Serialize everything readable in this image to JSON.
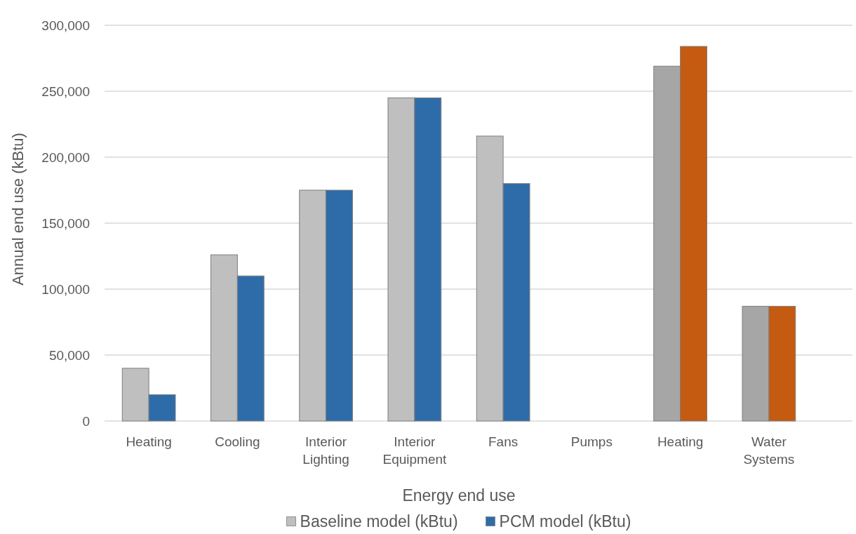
{
  "chart_data": {
    "type": "bar",
    "xlabel": "Energy end use",
    "ylabel": "Annual end use (kBtu)",
    "categories": [
      "Heating",
      "Cooling",
      "Interior Lighting",
      "Interior Equipment",
      "Fans",
      "Pumps",
      "Heating",
      "Water Systems"
    ],
    "series": [
      {
        "name": "Baseline model (kBtu)",
        "color": "#bfbfbf",
        "colors": [
          "#bfbfbf",
          "#bfbfbf",
          "#bfbfbf",
          "#bfbfbf",
          "#bfbfbf",
          "#bfbfbf",
          "#a6a6a6",
          "#a6a6a6"
        ],
        "values": [
          40000,
          126000,
          175000,
          245000,
          216000,
          0,
          269000,
          87000
        ]
      },
      {
        "name": "PCM model (kBtu)",
        "color": "#2e6ca9",
        "colors": [
          "#2e6ca9",
          "#2e6ca9",
          "#2e6ca9",
          "#2e6ca9",
          "#2e6ca9",
          "#2e6ca9",
          "#c55a11",
          "#c55a11"
        ],
        "values": [
          20000,
          110000,
          175000,
          245000,
          180000,
          0,
          284000,
          87000
        ]
      }
    ],
    "ylim": [
      0,
      300000
    ],
    "yticks": [
      0,
      {
        "value": 50000,
        "label": "50,000"
      },
      {
        "value": 100000,
        "label": "100,000"
      },
      {
        "value": 150000,
        "label": "150,000"
      },
      {
        "value": 200000,
        "label": "200,000"
      },
      {
        "value": 250000,
        "label": "250,000"
      },
      {
        "value": 300000,
        "label": "300,000"
      }
    ],
    "grid": "y",
    "legend": "bottom"
  }
}
